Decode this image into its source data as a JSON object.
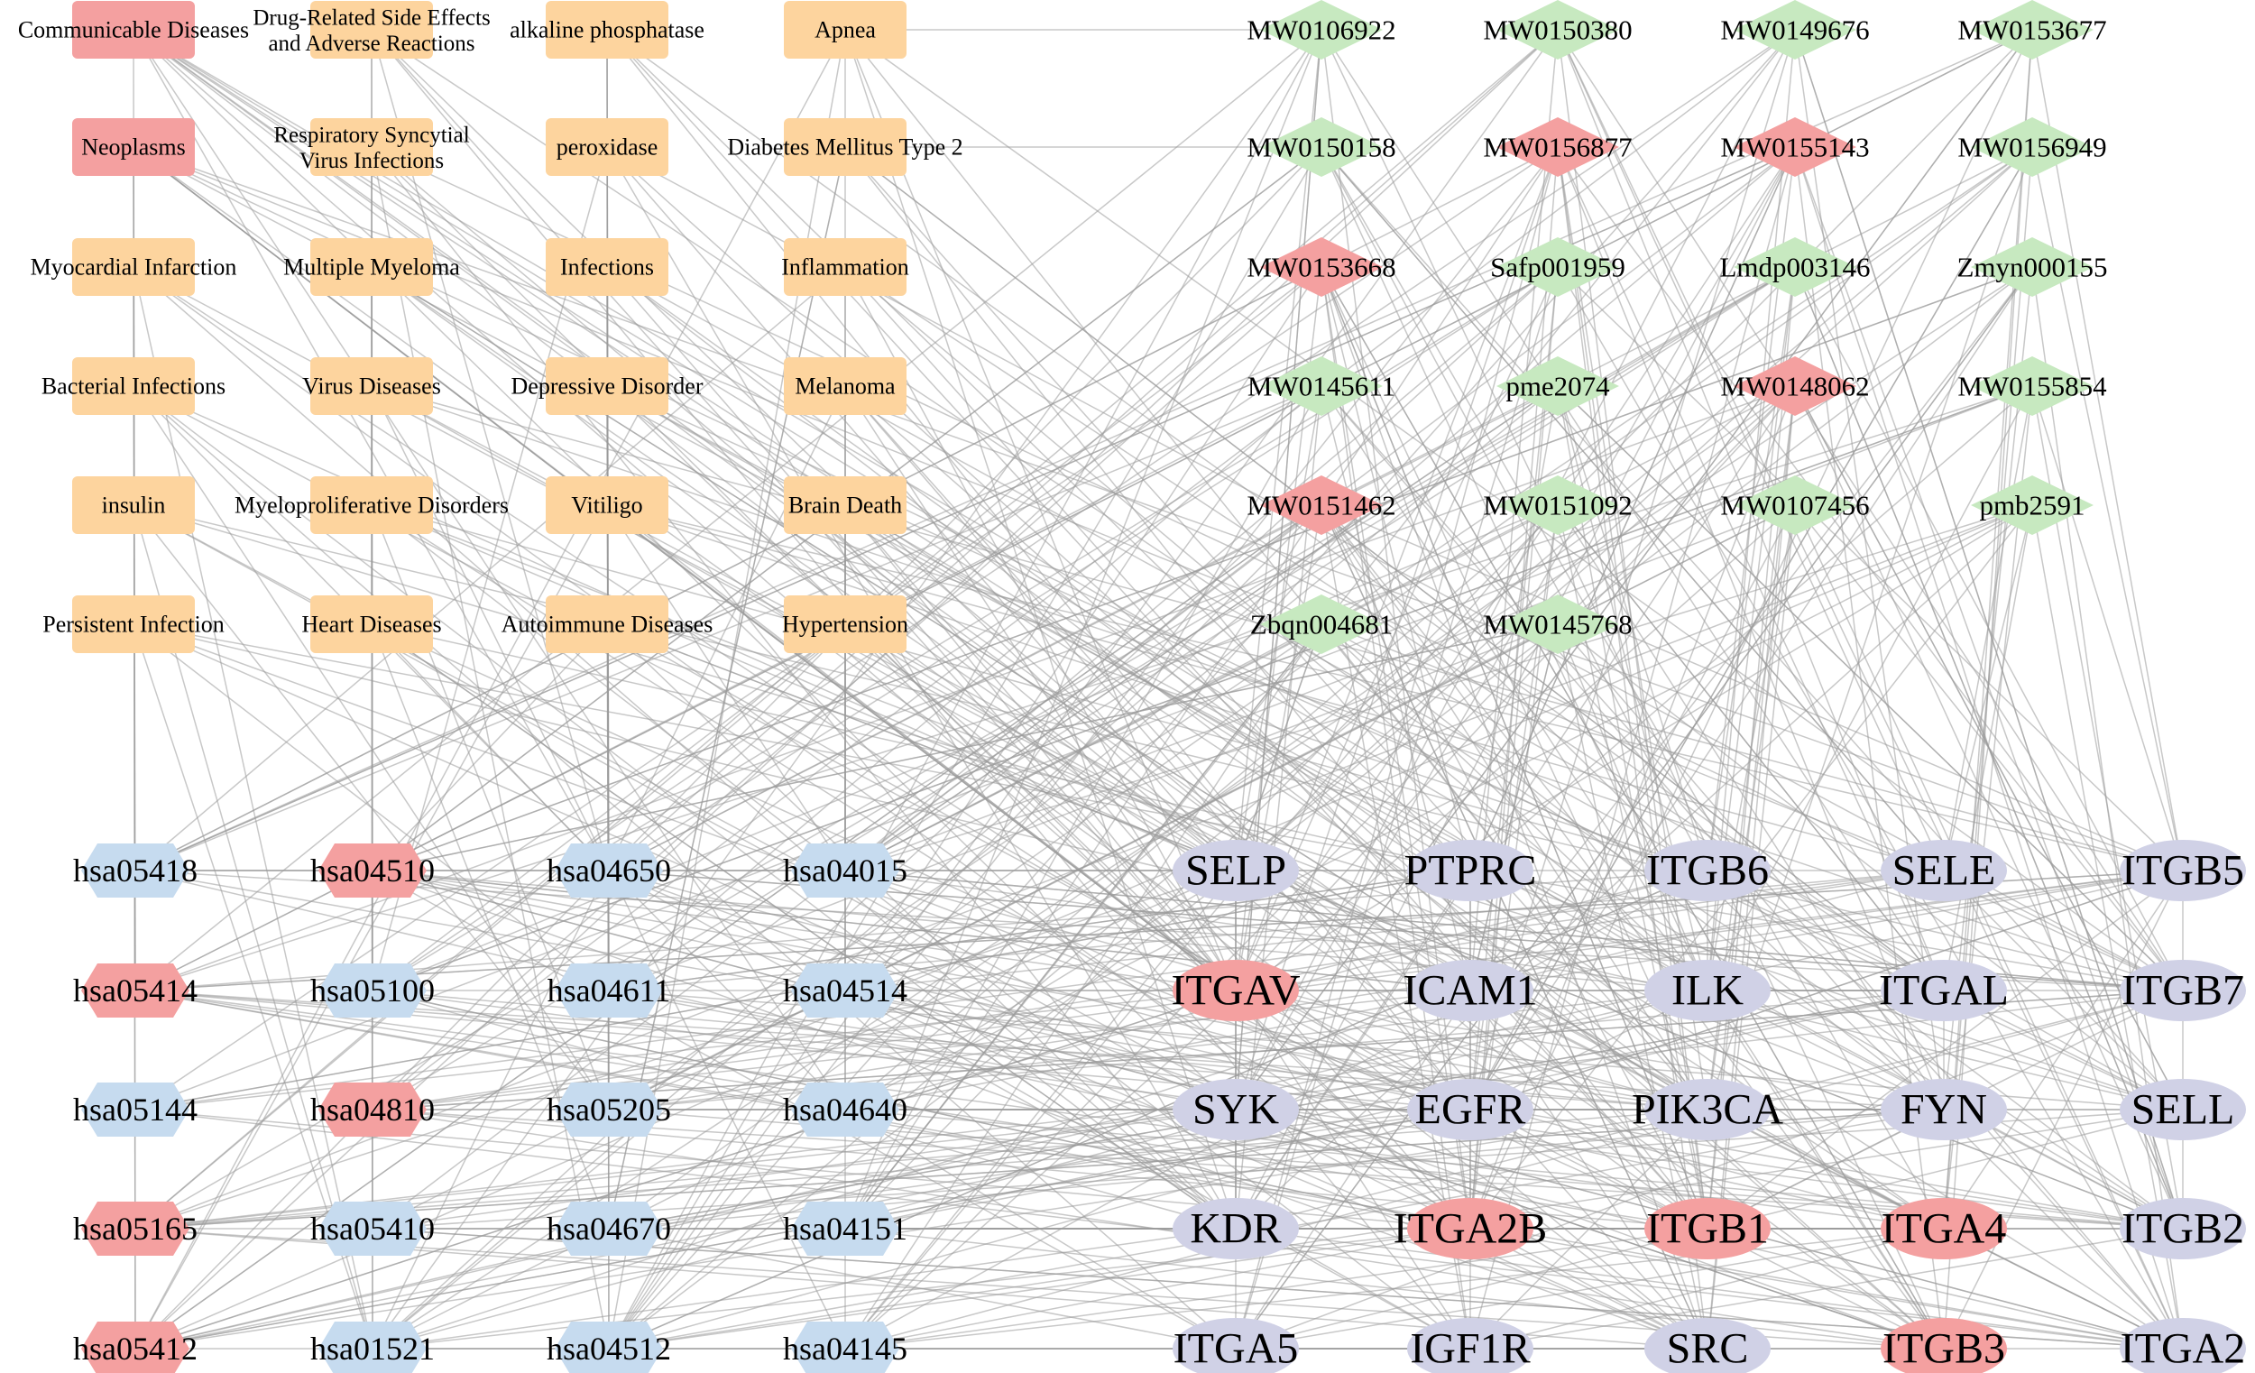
{
  "palette": {
    "disease": "#fdd49e",
    "compound": "#c7e9c0",
    "pathway": "#c6dbef",
    "target": "#d0d1e6",
    "hub": "#f4a0a0",
    "edge": "#9a9a9a"
  },
  "diseases": [
    {
      "label": "Communicable Diseases",
      "hub": true
    },
    {
      "label": "Drug-Related Side Effects and Adverse Reactions"
    },
    {
      "label": "alkaline phosphatase"
    },
    {
      "label": "Apnea"
    },
    {
      "label": "Neoplasms",
      "hub": true
    },
    {
      "label": "Respiratory Syncytial Virus Infections"
    },
    {
      "label": "peroxidase"
    },
    {
      "label": "Diabetes Mellitus Type 2"
    },
    {
      "label": "Myocardial Infarction"
    },
    {
      "label": "Multiple Myeloma"
    },
    {
      "label": "Infections"
    },
    {
      "label": "Inflammation"
    },
    {
      "label": "Bacterial Infections"
    },
    {
      "label": "Virus Diseases"
    },
    {
      "label": "Depressive Disorder"
    },
    {
      "label": "Melanoma"
    },
    {
      "label": "insulin"
    },
    {
      "label": "Myeloproliferative Disorders"
    },
    {
      "label": "Vitiligo"
    },
    {
      "label": "Brain Death"
    },
    {
      "label": "Persistent Infection"
    },
    {
      "label": "Heart Diseases"
    },
    {
      "label": "Autoimmune Diseases"
    },
    {
      "label": "Hypertension"
    }
  ],
  "compounds": [
    {
      "label": "MW0106922"
    },
    {
      "label": "MW0150380"
    },
    {
      "label": "MW0149676"
    },
    {
      "label": "MW0153677"
    },
    {
      "label": "MW0150158"
    },
    {
      "label": "MW0156877",
      "hub": true
    },
    {
      "label": "MW0155143",
      "hub": true
    },
    {
      "label": "MW0156949"
    },
    {
      "label": "MW0153668",
      "hub": true
    },
    {
      "label": "Safp001959"
    },
    {
      "label": "Lmdp003146"
    },
    {
      "label": "Zmyn000155"
    },
    {
      "label": "MW0145611"
    },
    {
      "label": "pme2074"
    },
    {
      "label": "MW0148062",
      "hub": true
    },
    {
      "label": "MW0155854"
    },
    {
      "label": "MW0151462",
      "hub": true
    },
    {
      "label": "MW0151092"
    },
    {
      "label": "MW0107456"
    },
    {
      "label": "pmb2591"
    },
    {
      "label": "Zbqn004681"
    },
    {
      "label": "MW0145768"
    }
  ],
  "pathways": [
    {
      "label": "hsa05418"
    },
    {
      "label": "hsa04510",
      "hub": true
    },
    {
      "label": "hsa04650"
    },
    {
      "label": "hsa04015"
    },
    {
      "label": "hsa05414",
      "hub": true
    },
    {
      "label": "hsa05100"
    },
    {
      "label": "hsa04611"
    },
    {
      "label": "hsa04514"
    },
    {
      "label": "hsa05144"
    },
    {
      "label": "hsa04810",
      "hub": true
    },
    {
      "label": "hsa05205"
    },
    {
      "label": "hsa04640"
    },
    {
      "label": "hsa05165",
      "hub": true
    },
    {
      "label": "hsa05410"
    },
    {
      "label": "hsa04670"
    },
    {
      "label": "hsa04151"
    },
    {
      "label": "hsa05412",
      "hub": true
    },
    {
      "label": "hsa01521"
    },
    {
      "label": "hsa04512"
    },
    {
      "label": "hsa04145"
    }
  ],
  "targets": [
    {
      "label": "SELP"
    },
    {
      "label": "PTPRC"
    },
    {
      "label": "ITGB6"
    },
    {
      "label": "SELE"
    },
    {
      "label": "ITGB5"
    },
    {
      "label": "ITGAV",
      "hub": true
    },
    {
      "label": "ICAM1"
    },
    {
      "label": "ILK"
    },
    {
      "label": "ITGAL"
    },
    {
      "label": "ITGB7"
    },
    {
      "label": "SYK"
    },
    {
      "label": "EGFR"
    },
    {
      "label": "PIK3CA"
    },
    {
      "label": "FYN"
    },
    {
      "label": "SELL"
    },
    {
      "label": "KDR"
    },
    {
      "label": "ITGA2B",
      "hub": true
    },
    {
      "label": "ITGB1",
      "hub": true
    },
    {
      "label": "ITGA4",
      "hub": true
    },
    {
      "label": "ITGB2"
    },
    {
      "label": "ITGA5"
    },
    {
      "label": "IGF1R"
    },
    {
      "label": "SRC"
    },
    {
      "label": "ITGB3",
      "hub": true
    },
    {
      "label": "ITGA2"
    }
  ]
}
